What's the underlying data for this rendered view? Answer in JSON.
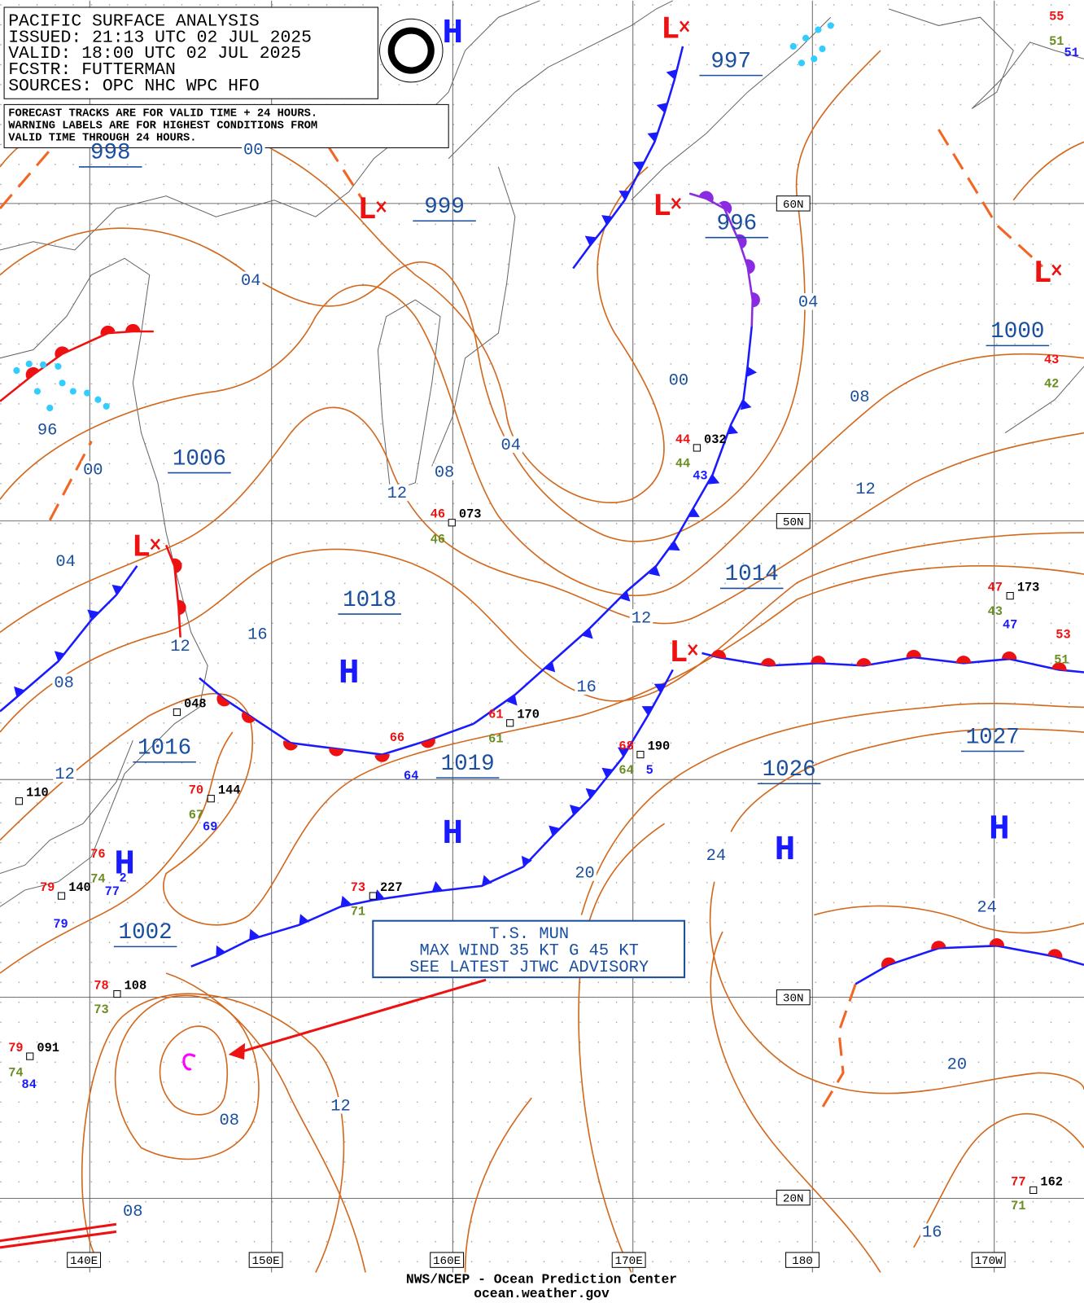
{
  "header": {
    "lines": [
      "PACIFIC SURFACE ANALYSIS",
      "ISSUED: 21:13 UTC 02 JUL 2025",
      "VALID:  18:00 UTC 02 JUL 2025",
      "FCSTR:  FUTTERMAN",
      "SOURCES: OPC NHC WPC HFO"
    ]
  },
  "note": {
    "lines": [
      "FORECAST TRACKS ARE FOR VALID TIME + 24 HOURS.",
      "WARNING LABELS ARE FOR HIGHEST CONDITIONS FROM",
      "VALID TIME THROUGH 24 HOURS."
    ]
  },
  "pressure_labels": [
    "998",
    "999",
    "997",
    "996",
    "1000",
    "1006",
    "1018",
    "1014",
    "1016",
    "1019",
    "1027",
    "1026",
    "1002"
  ],
  "highs": [
    "H",
    "H",
    "H",
    "H",
    "H",
    "H"
  ],
  "lows": [
    "L",
    "L",
    "L",
    "L",
    "L",
    "L"
  ],
  "isobar_labels": [
    "00",
    "04",
    "04",
    "00",
    "08",
    "96",
    "04",
    "00",
    "08",
    "12",
    "12",
    "04",
    "16",
    "12",
    "12",
    "08",
    "16",
    "12",
    "24",
    "20",
    "24",
    "20",
    "12",
    "08",
    "08",
    "16"
  ],
  "grid_labels": [
    "60N",
    "50N",
    "30N",
    "20N",
    "140E",
    "150E",
    "160E",
    "170E",
    "180",
    "170W"
  ],
  "station_labels": [
    "55",
    "43",
    "44",
    "46",
    "47",
    "53",
    "66",
    "61",
    "68",
    "70",
    "76",
    "79",
    "73",
    "78",
    "79",
    "77",
    "51",
    "42",
    "44",
    "46",
    "43",
    "51",
    "61",
    "64",
    "67",
    "74",
    "71",
    "73",
    "74",
    "71",
    "032",
    "073",
    "173",
    "170",
    "190",
    "048",
    "144",
    "110",
    "140",
    "227",
    "108",
    "091",
    "162",
    "51",
    "43",
    "64",
    "47",
    "5",
    "69",
    "77",
    "79",
    "84",
    "2"
  ],
  "storm_box": {
    "lines": [
      "T.S. MUN",
      "MAX WIND 35 KT G 45 KT",
      "SEE LATEST JTWC ADVISORY"
    ]
  },
  "footer": {
    "lines": [
      "NWS/NCEP - Ocean Prediction Center",
      "ocean.weather.gov"
    ]
  }
}
